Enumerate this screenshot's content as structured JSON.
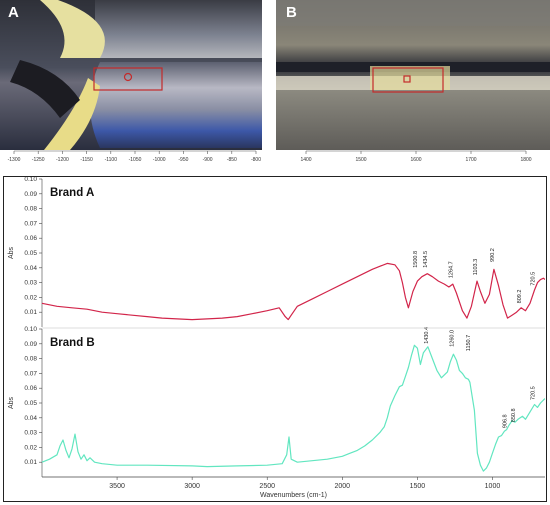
{
  "panels": {
    "a": {
      "letter": "A",
      "ticks": [
        "-1300",
        "-1250",
        "-1200",
        "-1150",
        "-1100",
        "-1050",
        "-1000",
        "-950",
        "-900",
        "-850",
        "-800"
      ]
    },
    "b": {
      "letter": "B",
      "ticks": [
        "1400",
        "1500",
        "1600",
        "1700",
        "1800"
      ]
    }
  },
  "colors": {
    "brand_a": "#d2254a",
    "brand_b": "#62e6c0",
    "frame": "#222222"
  },
  "chart_data": [
    {
      "type": "line",
      "title": "Brand A",
      "ylabel": "Abs",
      "ylim": [
        0,
        0.1
      ],
      "yticks": [
        "0.10",
        "0.09",
        "0.08",
        "0.07",
        "0.06",
        "0.05",
        "0.04",
        "0.03",
        "0.02",
        "0.01"
      ],
      "x_reversed": true,
      "xlim": [
        4000,
        650
      ],
      "annotations": [
        "1500.8",
        "1434.5",
        "1264.7",
        "1103.3",
        "990.2",
        "809.2",
        "720.5"
      ],
      "series": [
        {
          "x": [
            4000,
            3900,
            3800,
            3700,
            3600,
            3500,
            3400,
            3300,
            3200,
            3100,
            3000,
            2900,
            2800,
            2700,
            2600,
            2500,
            2420,
            2380,
            2360,
            2340,
            2300,
            2200,
            2100,
            2000,
            1900,
            1800,
            1750,
            1700,
            1650,
            1620,
            1600,
            1580,
            1560,
            1530,
            1500,
            1470,
            1434,
            1400,
            1360,
            1320,
            1290,
            1264,
            1240,
            1200,
            1170,
            1140,
            1103,
            1080,
            1050,
            1020,
            990,
            960,
            930,
            900,
            870,
            840,
            809,
            780,
            750,
            720,
            700,
            680,
            660,
            650
          ],
          "y": [
            0.016,
            0.014,
            0.013,
            0.012,
            0.01,
            0.009,
            0.008,
            0.007,
            0.006,
            0.0055,
            0.005,
            0.0055,
            0.006,
            0.007,
            0.009,
            0.011,
            0.013,
            0.007,
            0.005,
            0.008,
            0.014,
            0.019,
            0.024,
            0.029,
            0.034,
            0.039,
            0.041,
            0.043,
            0.042,
            0.038,
            0.03,
            0.02,
            0.013,
            0.024,
            0.031,
            0.034,
            0.036,
            0.034,
            0.031,
            0.029,
            0.027,
            0.029,
            0.023,
            0.011,
            0.006,
            0.014,
            0.031,
            0.024,
            0.016,
            0.022,
            0.039,
            0.028,
            0.015,
            0.006,
            0.008,
            0.01,
            0.013,
            0.011,
            0.016,
            0.025,
            0.03,
            0.032,
            0.033,
            0.032
          ]
        }
      ]
    },
    {
      "type": "line",
      "title": "Brand B",
      "ylabel": "Abs",
      "xlabel": "Wavenumbers (cm-1)",
      "ylim": [
        0,
        0.1
      ],
      "yticks": [
        "0.10",
        "0.09",
        "0.08",
        "0.07",
        "0.06",
        "0.05",
        "0.04",
        "0.03",
        "0.02",
        "0.01"
      ],
      "xticks": [
        "3500",
        "3000",
        "2500",
        "2000",
        "1500",
        "1000"
      ],
      "x_reversed": true,
      "xlim": [
        4000,
        650
      ],
      "annotations": [
        "1430.4",
        "1260.0",
        "1150.7",
        "906.8",
        "850.8",
        "720.5"
      ],
      "series": [
        {
          "x": [
            4000,
            3950,
            3900,
            3880,
            3860,
            3840,
            3820,
            3800,
            3780,
            3760,
            3740,
            3720,
            3700,
            3680,
            3650,
            3600,
            3500,
            3300,
            3000,
            2900,
            2700,
            2500,
            2400,
            2370,
            2355,
            2340,
            2300,
            2200,
            2100,
            2000,
            1950,
            1900,
            1850,
            1800,
            1750,
            1720,
            1700,
            1680,
            1650,
            1620,
            1600,
            1580,
            1560,
            1540,
            1520,
            1500,
            1480,
            1460,
            1430,
            1400,
            1370,
            1340,
            1300,
            1280,
            1260,
            1240,
            1220,
            1200,
            1180,
            1160,
            1150,
            1120,
            1100,
            1080,
            1060,
            1040,
            1020,
            1000,
            980,
            960,
            940,
            920,
            906,
            890,
            870,
            850,
            830,
            800,
            780,
            750,
            720,
            700,
            680,
            660,
            650
          ],
          "y": [
            0.01,
            0.012,
            0.015,
            0.021,
            0.025,
            0.018,
            0.013,
            0.019,
            0.029,
            0.017,
            0.012,
            0.015,
            0.011,
            0.013,
            0.01,
            0.009,
            0.008,
            0.008,
            0.0075,
            0.007,
            0.0075,
            0.008,
            0.009,
            0.015,
            0.027,
            0.012,
            0.01,
            0.011,
            0.012,
            0.014,
            0.016,
            0.018,
            0.021,
            0.025,
            0.03,
            0.034,
            0.04,
            0.048,
            0.055,
            0.061,
            0.062,
            0.068,
            0.074,
            0.082,
            0.089,
            0.087,
            0.076,
            0.084,
            0.088,
            0.08,
            0.072,
            0.067,
            0.071,
            0.078,
            0.083,
            0.079,
            0.072,
            0.07,
            0.067,
            0.066,
            0.064,
            0.045,
            0.016,
            0.008,
            0.004,
            0.006,
            0.01,
            0.016,
            0.022,
            0.027,
            0.028,
            0.031,
            0.032,
            0.035,
            0.038,
            0.037,
            0.039,
            0.041,
            0.039,
            0.044,
            0.049,
            0.047,
            0.05,
            0.052,
            0.053
          ]
        }
      ]
    }
  ]
}
